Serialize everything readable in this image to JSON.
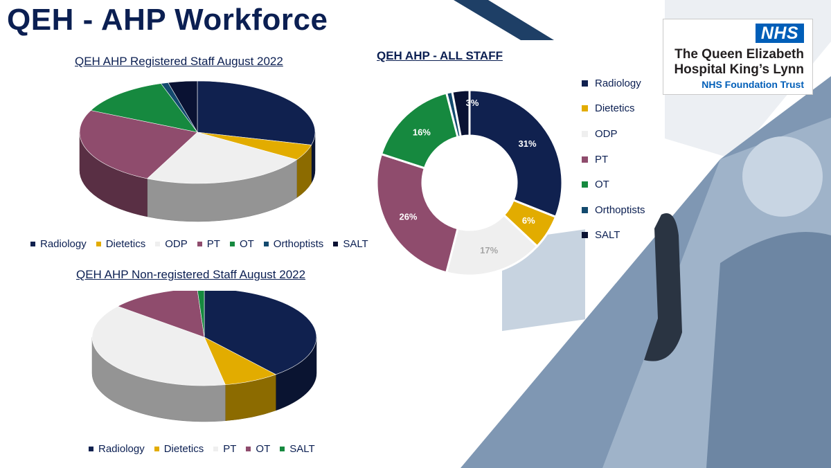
{
  "page": {
    "title": "QEH - AHP Workforce"
  },
  "logo": {
    "badge": "NHS",
    "line1": "The Queen Elizabeth",
    "line2": "Hospital King’s Lynn",
    "line3": "NHS Foundation Trust"
  },
  "chart_data": [
    {
      "type": "pie",
      "title": "QEH AHP Registered Staff August 2022",
      "categories": [
        "Radiology",
        "Dietetics",
        "ODP",
        "PT",
        "OT",
        "Orthoptists",
        "SALT"
      ],
      "values": [
        29,
        5,
        23,
        25,
        13,
        1,
        4
      ],
      "colors": [
        "#10214f",
        "#e2ac00",
        "#efefef",
        "#8f4c6d",
        "#16893f",
        "#134a6e",
        "#0a1233"
      ],
      "legend": "bottom",
      "style": "3d"
    },
    {
      "type": "pie",
      "title": "QEH AHP Non-registered Staff August 2022",
      "categories": [
        "Radiology",
        "Dietetics",
        "PT",
        "OT",
        "SALT"
      ],
      "values": [
        39,
        8,
        39,
        13,
        1
      ],
      "colors": [
        "#10214f",
        "#e2ac00",
        "#efefef",
        "#8f4c6d",
        "#16893f"
      ],
      "legend": "bottom",
      "style": "3d"
    },
    {
      "type": "donut",
      "title": "QEH AHP - ALL STAFF",
      "categories": [
        "Radiology",
        "Dietetics",
        "ODP",
        "PT",
        "OT",
        "Orthoptists",
        "SALT"
      ],
      "values": [
        31,
        6,
        17,
        26,
        16,
        1,
        3
      ],
      "labels": [
        "31%",
        "6%",
        "17%",
        "26%",
        "16%",
        "1%",
        "3%"
      ],
      "colors": [
        "#10214f",
        "#e2ac00",
        "#efefef",
        "#8f4c6d",
        "#16893f",
        "#134a6e",
        "#0a1233"
      ],
      "label_colors": [
        "#ffffff",
        "#ffffff",
        "#a6a6a6",
        "#ffffff",
        "#ffffff",
        "#ffffff",
        "#ffffff"
      ],
      "legend": "right"
    }
  ]
}
